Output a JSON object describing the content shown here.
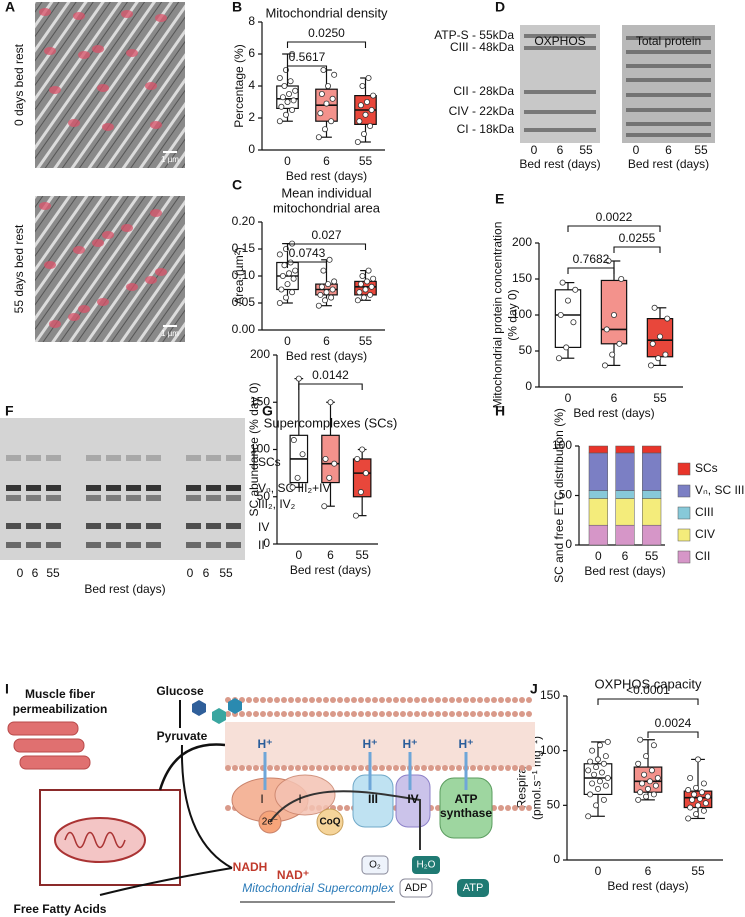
{
  "panel_labels": [
    "A",
    "B",
    "C",
    "D",
    "E",
    "F",
    "G",
    "H",
    "I",
    "J"
  ],
  "panel_a": {
    "labels": [
      "0 days bed rest",
      "55 days bed rest"
    ],
    "scale_bar": "1 µm"
  },
  "panel_d": {
    "titles": [
      "OXPHOS",
      "Total protein"
    ],
    "bands": [
      "ATP-S - 55kDa",
      "CIII - 48kDa",
      "CII - 28kDa",
      "CIV - 22kDa",
      "CI - 18kDa"
    ],
    "categories": [
      "0",
      "6",
      "55"
    ],
    "xlabel": "Bed rest (days)"
  },
  "panel_f": {
    "bands": [
      "SCs",
      "Vₙ, SC III₂+IV",
      "III₂, IV₂",
      "IV",
      "II"
    ],
    "categories": [
      "0",
      "6",
      "55"
    ],
    "xlabel": "Bed rest (days)"
  },
  "panel_i": {
    "fiber": [
      "Muscle fiber",
      "permeabilization"
    ],
    "glucose": "Glucose",
    "pyruvate": "Pyruvate",
    "proton": "H⁺",
    "complex_i": "I",
    "electrons": "2e⁻",
    "coq": "CoQ",
    "complex_iii": "III",
    "complex_iv": "IV",
    "atp_synthase": [
      "ATP",
      "synthase"
    ],
    "oxygen": "O₂",
    "water": "H₂O",
    "nadh": "NADH",
    "nad": "NAD⁺",
    "adp": "ADP",
    "atp": "ATP",
    "supercomplex": "Mitochondrial Supercomplex",
    "fatty_acids": "Free Fatty Acids"
  },
  "chart_data": [
    {
      "type": "box",
      "title": [
        "Mitochondrial density"
      ],
      "xlabel": "Bed rest (days)",
      "ylabel": [
        "Percentage (%)"
      ],
      "categories": [
        "0",
        "6",
        "55"
      ],
      "colors": [
        "#ffffff",
        "#f3928c",
        "#e8473b"
      ],
      "ylim": [
        0,
        8
      ],
      "yticks": [
        0,
        2,
        4,
        6,
        8
      ],
      "boxes": [
        {
          "min": 1.8,
          "q1": 2.6,
          "median": 3.2,
          "q3": 4.0,
          "max": 6.0,
          "points": [
            1.8,
            2.2,
            2.5,
            2.7,
            3.0,
            3.1,
            3.3,
            3.5,
            3.7,
            4.0,
            4.3,
            4.5,
            5.0,
            6.0
          ]
        },
        {
          "min": 0.8,
          "q1": 1.8,
          "median": 2.8,
          "q3": 3.8,
          "max": 5.0,
          "points": [
            0.8,
            1.3,
            1.8,
            2.3,
            2.9,
            3.2,
            3.5,
            4.0,
            4.7,
            5.0
          ]
        },
        {
          "min": 0.5,
          "q1": 1.6,
          "median": 2.5,
          "q3": 3.4,
          "max": 4.5,
          "points": [
            0.5,
            1.0,
            1.5,
            1.8,
            2.2,
            2.5,
            2.8,
            3.0,
            3.4,
            4.0,
            4.5
          ]
        }
      ],
      "comparisons": [
        {
          "between": [
            "0",
            "6"
          ],
          "label": "0.5617"
        },
        {
          "between": [
            "0",
            "55"
          ],
          "label": "0.0250"
        }
      ]
    },
    {
      "type": "box",
      "title": [
        "Mean individual",
        "mitochondrial area"
      ],
      "xlabel": "Bed rest (days)",
      "ylabel": [
        "Area (µm²)"
      ],
      "categories": [
        "0",
        "6",
        "55"
      ],
      "colors": [
        "#ffffff",
        "#f3928c",
        "#e8473b"
      ],
      "ylim": [
        0,
        0.2
      ],
      "yticks": [
        {
          "value": 0,
          "label": "0.00"
        },
        {
          "value": 0.05,
          "label": "0.05"
        },
        {
          "value": 0.1,
          "label": "0.10"
        },
        {
          "value": 0.15,
          "label": "0.15"
        },
        {
          "value": 0.2,
          "label": "0.20"
        }
      ],
      "boxes": [
        {
          "min": 0.05,
          "q1": 0.075,
          "median": 0.1,
          "q3": 0.125,
          "max": 0.16,
          "points": [
            0.05,
            0.06,
            0.07,
            0.075,
            0.085,
            0.095,
            0.1,
            0.105,
            0.11,
            0.12,
            0.125,
            0.14,
            0.15,
            0.16
          ]
        },
        {
          "min": 0.045,
          "q1": 0.065,
          "median": 0.075,
          "q3": 0.085,
          "max": 0.13,
          "points": [
            0.045,
            0.055,
            0.06,
            0.065,
            0.07,
            0.075,
            0.08,
            0.085,
            0.09,
            0.11,
            0.13
          ]
        },
        {
          "min": 0.055,
          "q1": 0.065,
          "median": 0.08,
          "q3": 0.09,
          "max": 0.11,
          "points": [
            0.055,
            0.06,
            0.065,
            0.07,
            0.075,
            0.08,
            0.085,
            0.09,
            0.095,
            0.1,
            0.11
          ]
        }
      ],
      "comparisons": [
        {
          "between": [
            "0",
            "6"
          ],
          "label": "0.0743"
        },
        {
          "between": [
            "0",
            "55"
          ],
          "label": "0.027"
        }
      ]
    },
    {
      "type": "box",
      "xlabel": "Bed rest (days)",
      "ylabel": [
        "Mitochondrial protein concentration",
        "(% day 0)"
      ],
      "categories": [
        "0",
        "6",
        "55"
      ],
      "colors": [
        "#ffffff",
        "#f3928c",
        "#e8473b"
      ],
      "ylim": [
        0,
        200
      ],
      "yticks": [
        0,
        50,
        100,
        150,
        200
      ],
      "boxes": [
        {
          "min": 40,
          "q1": 55,
          "median": 100,
          "q3": 135,
          "max": 145,
          "points": [
            40,
            55,
            90,
            100,
            120,
            135,
            145
          ]
        },
        {
          "min": 30,
          "q1": 60,
          "median": 80,
          "q3": 148,
          "max": 175,
          "points": [
            30,
            45,
            60,
            80,
            100,
            150,
            175
          ]
        },
        {
          "min": 30,
          "q1": 42,
          "median": 65,
          "q3": 95,
          "max": 110,
          "points": [
            30,
            40,
            45,
            60,
            70,
            95,
            110
          ]
        }
      ],
      "comparisons": [
        {
          "between": [
            "0",
            "6"
          ],
          "label": "0.7682"
        },
        {
          "between": [
            "6",
            "55"
          ],
          "label": "0.0255"
        },
        {
          "between": [
            "0",
            "55"
          ],
          "label": "0.0022"
        }
      ]
    },
    {
      "type": "box",
      "title": [
        "Supercomplexes (SCs)"
      ],
      "xlabel": "Bed rest (days)",
      "ylabel": [
        "SC abundance (% day 0)"
      ],
      "categories": [
        "0",
        "6",
        "55"
      ],
      "colors": [
        "#ffffff",
        "#f3928c",
        "#e8473b"
      ],
      "ylim": [
        0,
        200
      ],
      "yticks": [
        0,
        50,
        100,
        150,
        200
      ],
      "boxes": [
        {
          "min": 60,
          "q1": 65,
          "median": 90,
          "q3": 115,
          "max": 175,
          "points": [
            60,
            70,
            95,
            110,
            175
          ]
        },
        {
          "min": 40,
          "q1": 65,
          "median": 85,
          "q3": 115,
          "max": 150,
          "points": [
            40,
            70,
            85,
            90,
            150
          ]
        },
        {
          "min": 30,
          "q1": 50,
          "median": 75,
          "q3": 90,
          "max": 100,
          "points": [
            30,
            55,
            75,
            90,
            100
          ]
        }
      ],
      "comparisons": [
        {
          "between": [
            "0",
            "55"
          ],
          "label": "0.0142"
        }
      ]
    },
    {
      "type": "stacked_bar",
      "xlabel": "Bed rest (days)",
      "ylabel": [
        "SC and free ETC distribution (%)"
      ],
      "categories": [
        "0",
        "6",
        "55"
      ],
      "ylim": [
        0,
        100
      ],
      "yticks": [
        0,
        50,
        100
      ],
      "series": [
        {
          "name": "SCs",
          "color": "#e8342a",
          "values": [
            7,
            7,
            7
          ]
        },
        {
          "name": "Vₙ, SC III₂+IV",
          "color": "#7b7fc4",
          "values": [
            38,
            38,
            38
          ]
        },
        {
          "name": "CIII",
          "color": "#87c9d9",
          "values": [
            8,
            8,
            8
          ]
        },
        {
          "name": "CIV",
          "color": "#f4ec7b",
          "values": [
            27,
            27,
            27
          ]
        },
        {
          "name": "CII",
          "color": "#d696c8",
          "values": [
            20,
            20,
            20
          ]
        }
      ]
    },
    {
      "type": "box",
      "title": [
        "OXPHOS capacity"
      ],
      "xlabel": "Bed rest (days)",
      "ylabel": [
        "Respiration",
        "(pmol.s⁻¹ mg⁻¹)"
      ],
      "categories": [
        "0",
        "6",
        "55"
      ],
      "colors": [
        "#ffffff",
        "#f3928c",
        "#e8473b"
      ],
      "ylim": [
        0,
        150
      ],
      "yticks": [
        0,
        50,
        100,
        150
      ],
      "boxes": [
        {
          "min": 40,
          "q1": 60,
          "median": 75,
          "q3": 88,
          "max": 108,
          "points": [
            40,
            50,
            55,
            60,
            65,
            68,
            70,
            72,
            75,
            78,
            80,
            82,
            85,
            88,
            90,
            92,
            95,
            100,
            105,
            108
          ]
        },
        {
          "min": 55,
          "q1": 62,
          "median": 72,
          "q3": 85,
          "max": 110,
          "points": [
            55,
            58,
            60,
            62,
            65,
            68,
            70,
            72,
            75,
            78,
            82,
            88,
            95,
            105,
            110
          ]
        },
        {
          "min": 38,
          "q1": 48,
          "median": 57,
          "q3": 63,
          "max": 92,
          "points": [
            38,
            42,
            45,
            48,
            50,
            52,
            55,
            56,
            58,
            60,
            62,
            64,
            66,
            70,
            75,
            92
          ]
        }
      ],
      "comparisons": [
        {
          "between": [
            "6",
            "55"
          ],
          "label": "0.0024"
        },
        {
          "between": [
            "0",
            "55"
          ],
          "label": "<0.0001"
        }
      ]
    }
  ]
}
